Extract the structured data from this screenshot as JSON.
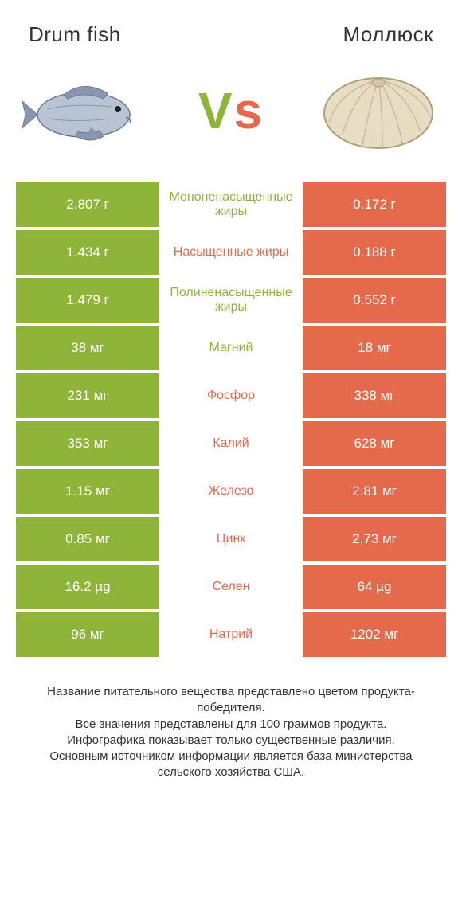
{
  "header": {
    "left_title": "Drum fish",
    "right_title": "Моллюск"
  },
  "vs": {
    "v": "V",
    "s": "s"
  },
  "colors": {
    "green": "#8fb43a",
    "orange": "#e56a4b",
    "mid_label_green": "#8fb43a",
    "mid_label_orange": "#e56a4b",
    "row_gap": "#ffffff"
  },
  "fish_svg": {
    "body_fill": "#b8c4d4",
    "body_stroke": "#6b7a94",
    "fin_fill": "#8a96b0",
    "eye": "#222222"
  },
  "clam_svg": {
    "shell_fill": "#e8dcc4",
    "shell_stroke": "#b0a078",
    "ridge": "#c4b494"
  },
  "rows": [
    {
      "left": "2.807 г",
      "label": "Мононенасыщенные жиры",
      "right": "0.172 г",
      "winner": "left"
    },
    {
      "left": "1.434 г",
      "label": "Насыщенные жиры",
      "right": "0.188 г",
      "winner": "right"
    },
    {
      "left": "1.479 г",
      "label": "Полиненасыщенные жиры",
      "right": "0.552 г",
      "winner": "left"
    },
    {
      "left": "38 мг",
      "label": "Магний",
      "right": "18 мг",
      "winner": "left"
    },
    {
      "left": "231 мг",
      "label": "Фосфор",
      "right": "338 мг",
      "winner": "right"
    },
    {
      "left": "353 мг",
      "label": "Калий",
      "right": "628 мг",
      "winner": "right"
    },
    {
      "left": "1.15 мг",
      "label": "Железо",
      "right": "2.81 мг",
      "winner": "right"
    },
    {
      "left": "0.85 мг",
      "label": "Цинк",
      "right": "2.73 мг",
      "winner": "right"
    },
    {
      "left": "16.2 µg",
      "label": "Селен",
      "right": "64 µg",
      "winner": "right"
    },
    {
      "left": "96 мг",
      "label": "Натрий",
      "right": "1202 мг",
      "winner": "right"
    }
  ],
  "footer_lines": [
    "Название питательного вещества представлено цветом продукта-победителя.",
    "Все значения представлены для 100 граммов продукта.",
    "Инфографика показывает только существенные различия.",
    "Основным источником информации является база министерства сельского хозяйства США."
  ]
}
